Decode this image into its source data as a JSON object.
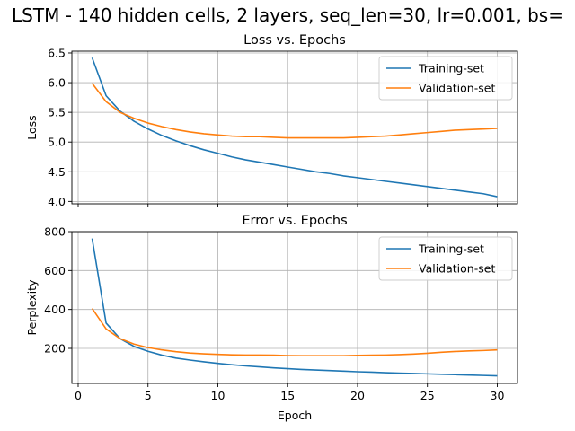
{
  "figure_title": "LSTM - 140 hidden cells, 2 layers, seq_len=30, lr=0.001, bs=",
  "colors": {
    "training": "#1f77b4",
    "validation": "#ff7f0e",
    "grid": "#b0b0b0"
  },
  "chart_data": [
    {
      "type": "line",
      "title": "Loss vs. Epochs",
      "xlabel": "",
      "ylabel": "Loss",
      "xlim": [
        -0.45,
        31.45
      ],
      "ylim": [
        3.96,
        6.53
      ],
      "xticks": [
        0,
        5,
        10,
        15,
        20,
        25,
        30
      ],
      "show_xtick_labels": false,
      "yticks": [
        4.0,
        4.5,
        5.0,
        5.5,
        6.0,
        6.5
      ],
      "ytick_labels": [
        "4.0",
        "4.5",
        "5.0",
        "5.5",
        "6.0",
        "6.5"
      ],
      "grid": true,
      "legend": "top-right",
      "x": [
        1,
        2,
        3,
        4,
        5,
        6,
        7,
        8,
        9,
        10,
        11,
        12,
        13,
        14,
        15,
        16,
        17,
        18,
        19,
        20,
        21,
        22,
        23,
        24,
        25,
        26,
        27,
        28,
        29,
        30
      ],
      "series": [
        {
          "name": "Training-set",
          "color": "#1f77b4",
          "values": [
            6.42,
            5.78,
            5.52,
            5.35,
            5.22,
            5.11,
            5.02,
            4.94,
            4.87,
            4.81,
            4.75,
            4.7,
            4.66,
            4.62,
            4.58,
            4.54,
            4.5,
            4.47,
            4.43,
            4.4,
            4.37,
            4.34,
            4.31,
            4.28,
            4.25,
            4.22,
            4.19,
            4.16,
            4.13,
            4.08
          ]
        },
        {
          "name": "Validation-set",
          "color": "#ff7f0e",
          "values": [
            5.99,
            5.68,
            5.5,
            5.4,
            5.32,
            5.26,
            5.21,
            5.17,
            5.14,
            5.12,
            5.1,
            5.09,
            5.09,
            5.08,
            5.07,
            5.07,
            5.07,
            5.07,
            5.07,
            5.08,
            5.09,
            5.1,
            5.12,
            5.14,
            5.16,
            5.18,
            5.2,
            5.21,
            5.22,
            5.23
          ]
        }
      ]
    },
    {
      "type": "line",
      "title": "Error vs. Epochs",
      "xlabel": "Epoch",
      "ylabel": "Perplexity",
      "xlim": [
        -0.45,
        31.45
      ],
      "ylim": [
        20,
        800
      ],
      "xticks": [
        0,
        5,
        10,
        15,
        20,
        25,
        30
      ],
      "xtick_labels": [
        "0",
        "5",
        "10",
        "15",
        "20",
        "25",
        "30"
      ],
      "show_xtick_labels": true,
      "yticks": [
        200,
        400,
        600,
        800
      ],
      "ytick_labels": [
        "200",
        "400",
        "600",
        "800"
      ],
      "grid": true,
      "legend": "top-right",
      "x": [
        1,
        2,
        3,
        4,
        5,
        6,
        7,
        8,
        9,
        10,
        11,
        12,
        13,
        14,
        15,
        16,
        17,
        18,
        19,
        20,
        21,
        22,
        23,
        24,
        25,
        26,
        27,
        28,
        29,
        30
      ],
      "series": [
        {
          "name": "Training-set",
          "color": "#1f77b4",
          "values": [
            765,
            330,
            250,
            210,
            185,
            165,
            150,
            140,
            131,
            123,
            116,
            110,
            105,
            100,
            96,
            92,
            89,
            86,
            83,
            80,
            78,
            75,
            73,
            71,
            69,
            67,
            65,
            63,
            61,
            59
          ]
        },
        {
          "name": "Validation-set",
          "color": "#ff7f0e",
          "values": [
            405,
            300,
            250,
            222,
            204,
            192,
            183,
            176,
            172,
            169,
            167,
            166,
            166,
            165,
            163,
            162,
            162,
            162,
            162,
            164,
            165,
            166,
            168,
            171,
            175,
            180,
            184,
            187,
            189,
            192
          ]
        }
      ]
    }
  ]
}
